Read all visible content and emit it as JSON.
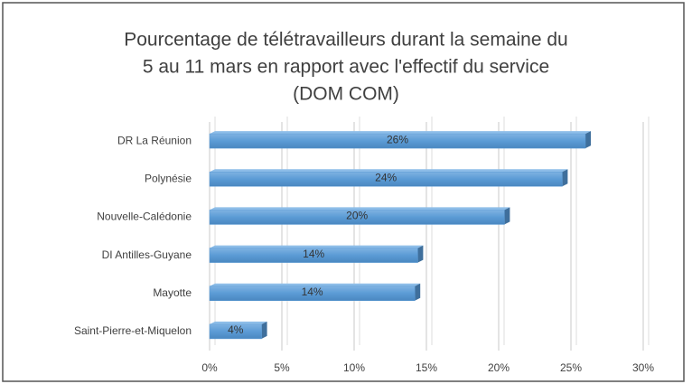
{
  "chart_data": {
    "type": "bar",
    "orientation": "horizontal",
    "title": [
      "Pourcentage de télétravailleurs durant la semaine du",
      "5 au 11 mars en rapport avec l'effectif du service",
      "(DOM COM)"
    ],
    "categories": [
      "DR La Réunion",
      "Polynésie",
      "Nouvelle-Calédonie",
      "DI Antilles-Guyane",
      "Mayotte",
      "Saint-Pierre-et-Miquelon"
    ],
    "values": [
      26,
      24.4,
      20.4,
      14.4,
      14.2,
      3.6
    ],
    "value_labels": [
      "26%",
      "24%",
      "20%",
      "14%",
      "14%",
      "4%"
    ],
    "color": "#5b9bd5",
    "xlim": [
      0,
      30
    ],
    "xticks": [
      {
        "value": 0,
        "label": "0%"
      },
      {
        "value": 5,
        "label": "5%"
      },
      {
        "value": 10,
        "label": "10%"
      },
      {
        "value": 15,
        "label": "15%"
      },
      {
        "value": 20,
        "label": "20%"
      },
      {
        "value": 25,
        "label": "25%"
      },
      {
        "value": 30,
        "label": "30%"
      }
    ],
    "grid": true
  }
}
